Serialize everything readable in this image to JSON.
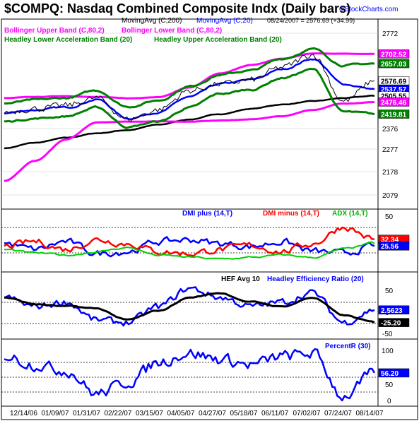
{
  "title": "$COMPQ:  Nasdaq Combined Composite Indx  (Daily bars)",
  "header_line": "08/24/2007 = 2576.69 (+34.99)",
  "watermark": "©StockCharts.com",
  "colors": {
    "magenta": "#ff00ff",
    "green": "#008000",
    "blue": "#0000ff",
    "black": "#000000",
    "red": "#ff0000",
    "lime": "#00d000"
  },
  "panel1": {
    "legend": {
      "ma200": "MovingAvg (C,200)",
      "ma20": "MovingAvg (C,20)",
      "bb_upper": "Bollinger Upper Band (C,80,2)",
      "bb_lower": "Bollinger Lower Band (C,80,2)",
      "hab_lower": "Headley Lower Acceleration Band (20)",
      "hab_upper": "Headley Upper Acceleration Band (20)"
    },
    "ticks": [
      "2772",
      "2376",
      "2277",
      "2178",
      "2079"
    ],
    "value_tags": [
      {
        "text": "2702.52",
        "color": "#ff00ff",
        "value": 2702.52
      },
      {
        "text": "2657.03",
        "color": "#008000",
        "value": 2657.03
      },
      {
        "text": "2576.69",
        "color": "#ffffff",
        "value": 2576.69
      },
      {
        "text": "2537.57",
        "color": "#0000ff",
        "value": 2537.57
      },
      {
        "text": "2505.55",
        "color": "#ffffff",
        "value": 2505.55
      },
      {
        "text": "2476.46",
        "color": "#ff00ff",
        "value": 2476.46
      },
      {
        "text": "2419.81",
        "color": "#008000",
        "value": 2419.81
      }
    ]
  },
  "panel2": {
    "legend": {
      "dmi_plus": "DMI plus (14,T)",
      "dmi_minus": "DMI minus (14,T)",
      "adx": "ADX (14,T)"
    },
    "ticks": [
      "50"
    ],
    "value_tags": [
      {
        "text": "32.34",
        "color": "#ff0000",
        "value": 32.34
      },
      {
        "text": "25.56",
        "color": "#0000ff",
        "value": 25.56
      }
    ]
  },
  "panel3": {
    "legend": {
      "hef": "HEF Avg 10",
      "her": "Headley Efficiency Ratio (20)"
    },
    "ticks": [
      "50",
      "0",
      "-50"
    ],
    "value_tags": [
      {
        "text": "2.5623",
        "color": "#0000ff",
        "value": 2.5623
      },
      {
        "text": "-25.20",
        "color": "#000000",
        "value": -25.2
      }
    ]
  },
  "panel4": {
    "legend": {
      "pctr": "PercentR (30)"
    },
    "ticks": [
      "100",
      "50",
      "0"
    ],
    "value_tags": [
      {
        "text": "56.20",
        "color": "#0000ff",
        "value": 56.2
      }
    ]
  },
  "x_labels": [
    "12/14/06",
    "01/09/07",
    "01/31/07",
    "02/22/07",
    "03/15/07",
    "04/05/07",
    "04/27/07",
    "05/18/07",
    "06/11/07",
    "07/02/07",
    "07/24/07",
    "08/14/07"
  ],
  "chart_data": [
    {
      "type": "line",
      "title": "$COMPQ:  Nasdaq Combined Composite Indx  (Daily bars)",
      "ylim": [
        2040,
        2800
      ],
      "x": [
        "12/14/06",
        "01/09/07",
        "01/31/07",
        "02/22/07",
        "03/15/07",
        "04/05/07",
        "04/27/07",
        "05/18/07",
        "06/11/07",
        "07/02/07",
        "07/24/07",
        "08/14/07",
        "08/24/07"
      ],
      "series": [
        {
          "name": "MovingAvg (C,200)",
          "color": "#000000",
          "values": [
            2260,
            2285,
            2308,
            2330,
            2345,
            2370,
            2395,
            2420,
            2445,
            2465,
            2480,
            2495,
            2505.55
          ]
        },
        {
          "name": "MovingAvg (C,20)",
          "color": "#0000ff",
          "values": [
            2425,
            2440,
            2450,
            2490,
            2400,
            2430,
            2500,
            2560,
            2580,
            2630,
            2680,
            2560,
            2537.57
          ]
        },
        {
          "name": "Bollinger Upper Band (C,80,2)",
          "color": "#ff00ff",
          "values": [
            2495,
            2500,
            2505,
            2500,
            2495,
            2500,
            2545,
            2610,
            2650,
            2680,
            2705,
            2705,
            2702.52
          ]
        },
        {
          "name": "Bollinger Lower Band (C,80,2)",
          "color": "#ff00ff",
          "values": [
            2105,
            2200,
            2300,
            2380,
            2385,
            2385,
            2385,
            2390,
            2395,
            2410,
            2440,
            2470,
            2476.46
          ]
        },
        {
          "name": "Headley Upper Acceleration Band (20)",
          "color": "#008000",
          "values": [
            2470,
            2485,
            2495,
            2530,
            2455,
            2485,
            2550,
            2605,
            2625,
            2680,
            2725,
            2650,
            2657.03
          ]
        },
        {
          "name": "Headley Lower Acceleration Band (20)",
          "color": "#008000",
          "values": [
            2385,
            2400,
            2410,
            2450,
            2360,
            2385,
            2450,
            2515,
            2535,
            2590,
            2630,
            2430,
            2419.81
          ]
        },
        {
          "name": "Close",
          "color": "#000000",
          "values": [
            2430,
            2445,
            2460,
            2495,
            2395,
            2440,
            2530,
            2560,
            2580,
            2640,
            2700,
            2480,
            2576.69
          ]
        }
      ]
    },
    {
      "type": "line",
      "ylim": [
        0,
        60
      ],
      "x": [
        "12/14/06",
        "01/09/07",
        "01/31/07",
        "02/22/07",
        "03/15/07",
        "04/05/07",
        "04/27/07",
        "05/18/07",
        "06/11/07",
        "07/02/07",
        "07/24/07",
        "08/14/07",
        "08/24/07"
      ],
      "series": [
        {
          "name": "DMI plus (14,T)",
          "color": "#0000ff",
          "values": [
            28,
            22,
            30,
            18,
            20,
            30,
            32,
            28,
            25,
            30,
            20,
            18,
            25.56
          ]
        },
        {
          "name": "DMI minus (14,T)",
          "color": "#ff0000",
          "values": [
            25,
            30,
            22,
            32,
            28,
            20,
            18,
            22,
            26,
            20,
            28,
            45,
            32.34
          ]
        },
        {
          "name": "ADX (14,T)",
          "color": "#00d000",
          "values": [
            22,
            18,
            16,
            20,
            24,
            16,
            14,
            12,
            14,
            16,
            14,
            22,
            28
          ]
        }
      ]
    },
    {
      "type": "line",
      "ylim": [
        -60,
        80
      ],
      "x": [
        "12/14/06",
        "01/09/07",
        "01/31/07",
        "02/22/07",
        "03/15/07",
        "04/05/07",
        "04/27/07",
        "05/18/07",
        "06/11/07",
        "07/02/07",
        "07/24/07",
        "08/14/07",
        "08/24/07"
      ],
      "series": [
        {
          "name": "Headley Efficiency Ratio (20)",
          "color": "#0000ff",
          "values": [
            30,
            10,
            20,
            -20,
            -25,
            10,
            50,
            30,
            10,
            20,
            40,
            -25,
            2.5623
          ]
        },
        {
          "name": "HEF Avg 10",
          "color": "#000000",
          "values": [
            30,
            15,
            10,
            5,
            -20,
            0,
            30,
            40,
            20,
            10,
            30,
            -10,
            -25.2
          ]
        }
      ]
    },
    {
      "type": "line",
      "ylim": [
        0,
        100
      ],
      "x": [
        "12/14/06",
        "01/09/07",
        "01/31/07",
        "02/22/07",
        "03/15/07",
        "04/05/07",
        "04/27/07",
        "05/18/07",
        "06/11/07",
        "07/02/07",
        "07/24/07",
        "08/14/07",
        "08/24/07"
      ],
      "series": [
        {
          "name": "PercentR (30)",
          "color": "#0000ff",
          "values": [
            85,
            70,
            60,
            20,
            40,
            75,
            90,
            80,
            70,
            85,
            90,
            15,
            56.2
          ]
        }
      ]
    }
  ]
}
